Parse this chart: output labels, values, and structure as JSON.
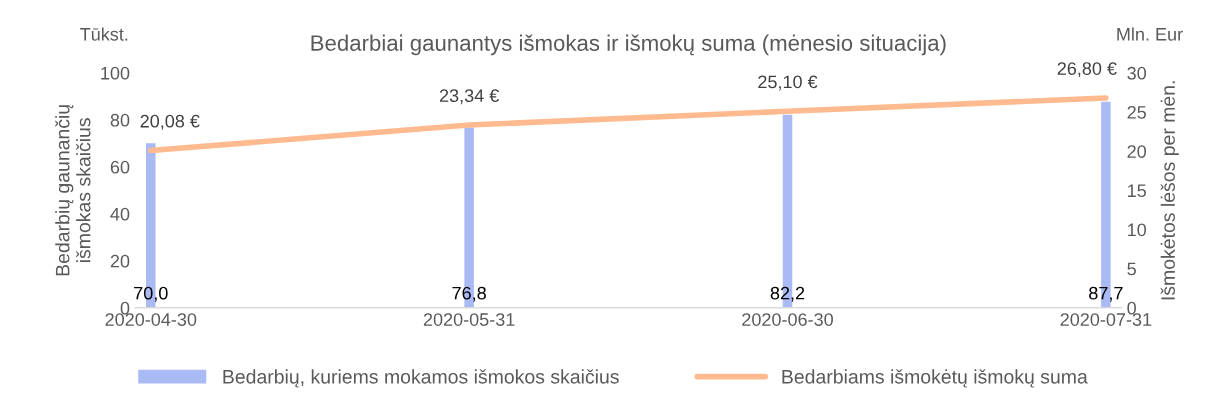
{
  "chart_data": {
    "type": "bar",
    "title": "Bedarbiai gaunantys išmokas ir išmokų suma (mėnesio situacija)",
    "categories": [
      "2020-04-30",
      "2020-05-31",
      "2020-06-30",
      "2020-07-31"
    ],
    "ylabel": "Bedarbių gaunančių\nišmokas skaičius",
    "y2label": "Išmokėtos lėšos per mėn.",
    "annotations": [
      "Tūkst.",
      "Mln. Eur"
    ],
    "ylim": [
      0,
      100
    ],
    "yticks": [
      0,
      20,
      40,
      60,
      80,
      100
    ],
    "y2lim": [
      0,
      30
    ],
    "y2ticks": [
      0,
      5,
      10,
      15,
      20,
      25,
      30
    ],
    "grid": false,
    "legend": "bottom",
    "series": [
      {
        "name": "Bedarbių, kuriems mokamos išmokos skaičius",
        "color": "#a9baf5",
        "values": [
          70.0,
          76.8,
          82.2,
          87.7
        ],
        "value_labels": [
          "70,0",
          "76,8",
          "82,2",
          "87,7"
        ]
      },
      {
        "name": "Bedarbiams išmokėtų išmokų suma",
        "type": "line",
        "axis": "y2",
        "color": "#ffbb8f",
        "values": [
          20.08,
          23.34,
          25.1,
          26.8
        ],
        "value_labels": [
          "20,08 €",
          "23,34 €",
          "25,10 €",
          "26,80 €"
        ]
      }
    ]
  }
}
